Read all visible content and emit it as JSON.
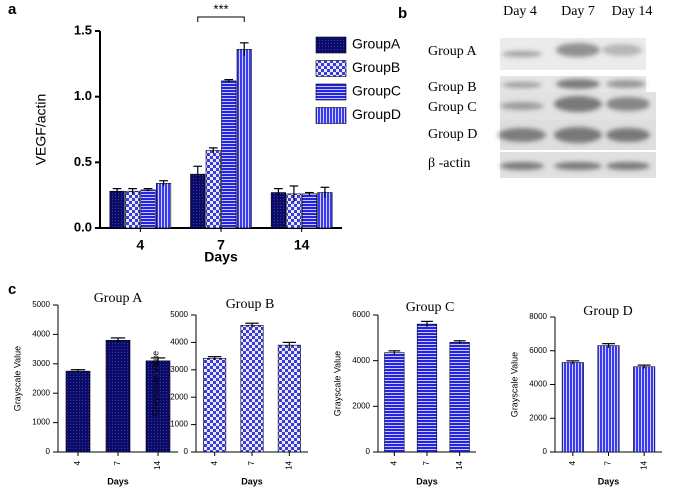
{
  "panels": [
    "a",
    "b",
    "c"
  ],
  "chart_data": [
    {
      "type": "bar",
      "xlabel": "Days",
      "ylabel": "VEGF/actin",
      "annotation": "***",
      "categories": [
        "4",
        "7",
        "14"
      ],
      "ylim": [
        0,
        1.5
      ],
      "yticks": [
        {
          "value": 0,
          "label": "0.0"
        },
        0.5,
        {
          "value": 1,
          "label": "1.0"
        },
        1.5
      ],
      "series": [
        {
          "name": "GroupA",
          "color": "#0b0b6b",
          "pattern": "dense",
          "values": [
            0.28,
            0.41,
            0.27
          ],
          "errors": [
            0.02,
            0.06,
            0.03
          ]
        },
        {
          "name": "GroupB",
          "color": "#3b3bd8",
          "pattern": "checker",
          "values": [
            0.28,
            0.59,
            0.26
          ],
          "errors": [
            0.02,
            0.02,
            0.06
          ]
        },
        {
          "name": "GroupC",
          "color": "#2424e0",
          "pattern": "hstripe",
          "values": [
            0.29,
            1.12,
            0.26
          ],
          "errors": [
            0.01,
            0.01,
            0.01
          ]
        },
        {
          "name": "GroupD",
          "color": "#3a3af0",
          "pattern": "vstripe",
          "values": [
            0.34,
            1.36,
            0.27
          ],
          "errors": [
            0.02,
            0.05,
            0.04
          ]
        }
      ]
    },
    {
      "type": "bar",
      "title": "Group A",
      "xlabel": "Days",
      "ylabel": "Grayscale Value",
      "categories": [
        "4",
        "7",
        "14"
      ],
      "ylim": [
        0,
        5000
      ],
      "yticks": [
        0,
        1000,
        2000,
        3000,
        4000,
        5000
      ],
      "color": "#0b0b6b",
      "pattern": "dense",
      "values": [
        2750,
        3800,
        3100
      ],
      "errors": [
        50,
        80,
        100
      ]
    },
    {
      "type": "bar",
      "title": "Group B",
      "xlabel": "Days",
      "ylabel": "Grayscale Value",
      "categories": [
        "4",
        "7",
        "14"
      ],
      "ylim": [
        0,
        5000
      ],
      "yticks": [
        0,
        1000,
        2000,
        3000,
        4000,
        5000
      ],
      "color": "#3b3bd8",
      "pattern": "checker",
      "values": [
        3420,
        4620,
        3900
      ],
      "errors": [
        60,
        80,
        100
      ]
    },
    {
      "type": "bar",
      "title": "Group C",
      "xlabel": "Days",
      "ylabel": "Grayscale Value",
      "categories": [
        "4",
        "7",
        "14"
      ],
      "ylim": [
        0,
        6000
      ],
      "yticks": [
        0,
        2000,
        4000,
        6000
      ],
      "color": "#2424e0",
      "pattern": "hstripe",
      "values": [
        4350,
        5600,
        4800
      ],
      "errors": [
        80,
        120,
        70
      ]
    },
    {
      "type": "bar",
      "title": "Group D",
      "xlabel": "Days",
      "ylabel": "Grayscale Value",
      "categories": [
        "4",
        "7",
        "14"
      ],
      "ylim": [
        0,
        8000
      ],
      "yticks": [
        0,
        2000,
        4000,
        6000,
        8000
      ],
      "color": "#3a3af0",
      "pattern": "vstripe",
      "values": [
        5300,
        6300,
        5050
      ],
      "errors": [
        100,
        120,
        100
      ]
    }
  ],
  "blot": {
    "columns": [
      "Day 4",
      "Day 7",
      "Day 14"
    ],
    "rows": [
      "Group A",
      "Group B",
      "Group C",
      "Group D",
      "β -actin"
    ]
  }
}
